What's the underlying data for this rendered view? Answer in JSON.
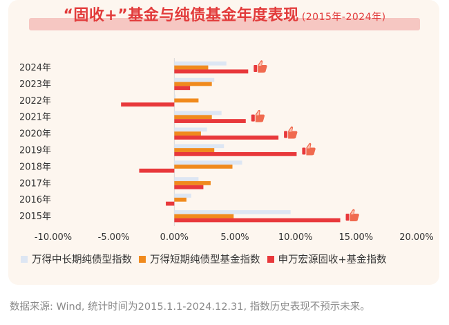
{
  "title": {
    "main": "“固收+”基金与纯债基金年度表现",
    "sub": "(2015年-2024年)"
  },
  "source_note": "数据来源: Wind, 统计时间为2015.1.1-2024.12.31, 指数历史表现不预示未来。",
  "colors": {
    "series1": "#dde6f3",
    "series2": "#f08a1d",
    "series3": "#e8383b",
    "title": "#e23b3b",
    "card": "#fdf6ef",
    "thumb": "#f06a4f"
  },
  "chart_data": {
    "type": "bar",
    "orientation": "horizontal",
    "categories": [
      "2024年",
      "2023年",
      "2022年",
      "2021年",
      "2020年",
      "2019年",
      "2018年",
      "2017年",
      "2016年",
      "2015年"
    ],
    "series": [
      {
        "name": "万得中长期纯债型指数",
        "values": [
          4.3,
          3.3,
          0.1,
          3.9,
          2.7,
          4.1,
          5.6,
          2.0,
          1.4,
          9.6
        ]
      },
      {
        "name": "万得短期纯债型基金指数",
        "values": [
          2.8,
          3.1,
          2.0,
          3.1,
          2.2,
          3.3,
          4.8,
          3.0,
          1.0,
          4.9
        ]
      },
      {
        "name": "申万宏源固收+基金指数",
        "values": [
          6.1,
          1.3,
          -4.4,
          5.9,
          8.6,
          10.1,
          -2.9,
          2.4,
          -0.7,
          13.7
        ]
      }
    ],
    "thumbs_up_categories": [
      "2024年",
      "2021年",
      "2020年",
      "2019年",
      "2015年"
    ],
    "xlim": [
      -10,
      20
    ],
    "xticks": [
      "-10.00%",
      "-5.00%",
      "0.00%",
      "5.00%",
      "10.00%",
      "15.00%",
      "20.00%"
    ],
    "legend_position": "bottom"
  }
}
